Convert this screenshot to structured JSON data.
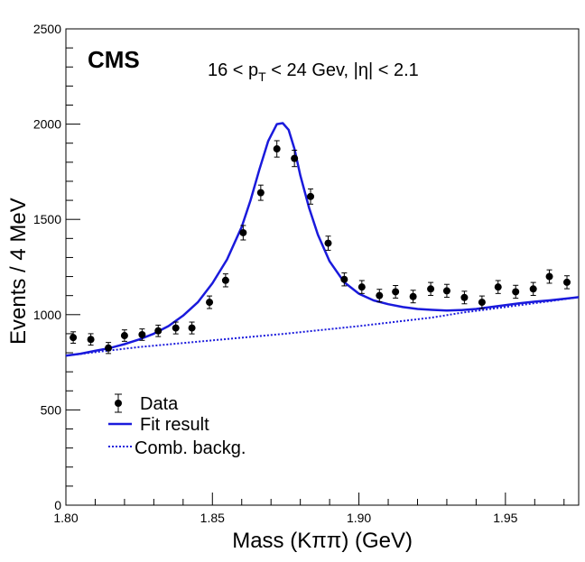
{
  "chart_data": {
    "type": "scatter",
    "experiment_label": "CMS",
    "selection_label": {
      "part1": "16 < p",
      "sub": "T",
      "part2": " < 24 Gev, |η| < 2.1"
    },
    "xlabel": "Mass (Kππ) (GeV)",
    "ylabel": "Events / 4 MeV",
    "xlim": [
      1.8,
      1.975
    ],
    "ylim": [
      0,
      2500
    ],
    "x_ticks": [
      {
        "value": 1.8,
        "label": "1.80"
      },
      {
        "value": 1.85,
        "label": "1.85"
      },
      {
        "value": 1.9,
        "label": "1.90"
      },
      {
        "value": 1.95,
        "label": "1.95"
      }
    ],
    "y_ticks": [
      {
        "value": 0,
        "label": "0"
      },
      {
        "value": 500,
        "label": "500"
      },
      {
        "value": 1000,
        "label": "1000"
      },
      {
        "value": 1500,
        "label": "1500"
      },
      {
        "value": 2000,
        "label": "2000"
      },
      {
        "value": 2500,
        "label": "2500"
      }
    ],
    "legend": {
      "position": "bottom-left",
      "entries": [
        {
          "label": "Data",
          "style": "marker",
          "color": "#000000"
        },
        {
          "label": "Fit result",
          "style": "solid",
          "color": "#1a1adc"
        },
        {
          "label": "Comb. backg.",
          "style": "dotted",
          "color": "#1a1adc"
        }
      ]
    },
    "series": [
      {
        "name": "Data",
        "kind": "points",
        "x": [
          1.8025,
          1.8085,
          1.8145,
          1.82,
          1.826,
          1.8315,
          1.8375,
          1.843,
          1.849,
          1.8545,
          1.8605,
          1.8665,
          1.872,
          1.878,
          1.8835,
          1.8895,
          1.895,
          1.901,
          1.907,
          1.9125,
          1.9185,
          1.9245,
          1.93,
          1.936,
          1.942,
          1.9475,
          1.9535,
          1.9595,
          1.965,
          1.971
        ],
        "y": [
          880,
          870,
          825,
          890,
          895,
          915,
          930,
          930,
          1065,
          1180,
          1430,
          1640,
          1870,
          1820,
          1620,
          1375,
          1185,
          1145,
          1100,
          1120,
          1095,
          1135,
          1125,
          1090,
          1065,
          1145,
          1120,
          1135,
          1200,
          1170
        ],
        "yerr": [
          30,
          30,
          29,
          30,
          30,
          30,
          31,
          31,
          33,
          34,
          38,
          40,
          43,
          43,
          40,
          37,
          34,
          34,
          33,
          33,
          33,
          34,
          34,
          33,
          33,
          34,
          34,
          34,
          35,
          34
        ]
      },
      {
        "name": "Fit result",
        "kind": "curve",
        "x": [
          1.8,
          1.805,
          1.81,
          1.815,
          1.82,
          1.825,
          1.83,
          1.835,
          1.84,
          1.845,
          1.85,
          1.855,
          1.86,
          1.863,
          1.866,
          1.869,
          1.872,
          1.874,
          1.876,
          1.878,
          1.88,
          1.883,
          1.886,
          1.89,
          1.895,
          1.9,
          1.905,
          1.91,
          1.915,
          1.92,
          1.925,
          1.93,
          1.935,
          1.94,
          1.945,
          1.95,
          1.955,
          1.96,
          1.965,
          1.97,
          1.975
        ],
        "y": [
          785,
          795,
          810,
          825,
          845,
          870,
          900,
          940,
          995,
          1065,
          1165,
          1290,
          1460,
          1600,
          1760,
          1910,
          2000,
          2005,
          1970,
          1870,
          1730,
          1560,
          1420,
          1280,
          1170,
          1110,
          1075,
          1055,
          1040,
          1030,
          1025,
          1022,
          1024,
          1030,
          1040,
          1050,
          1060,
          1068,
          1075,
          1083,
          1092
        ]
      },
      {
        "name": "Comb. backg.",
        "kind": "curve",
        "x": [
          1.8,
          1.825,
          1.85,
          1.875,
          1.9,
          1.925,
          1.935,
          1.945,
          1.955,
          1.965,
          1.975
        ],
        "y": [
          785,
          830,
          865,
          900,
          940,
          985,
          1010,
          1030,
          1050,
          1070,
          1092
        ]
      }
    ]
  }
}
